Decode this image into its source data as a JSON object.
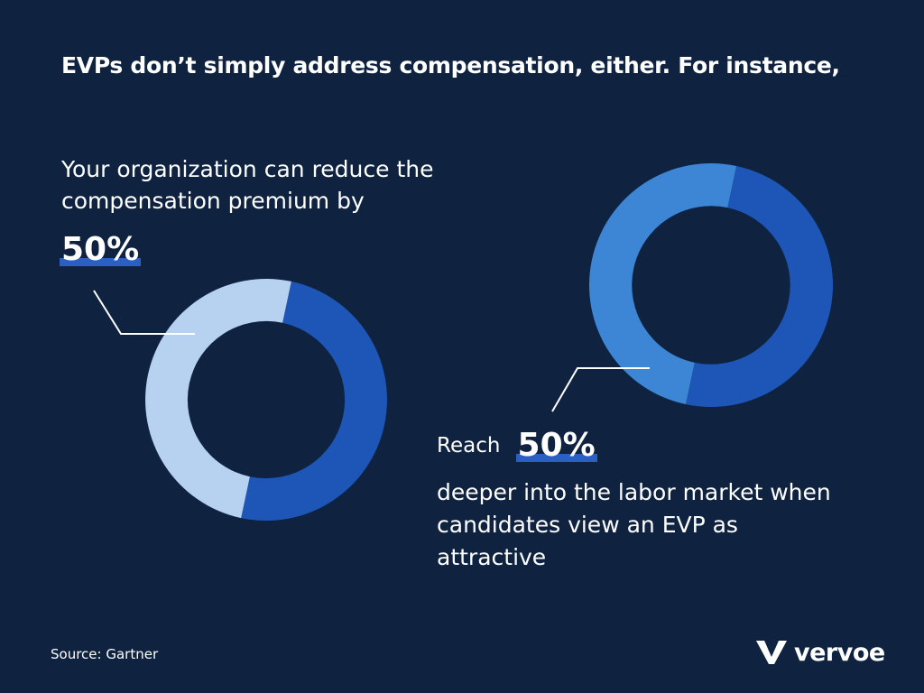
{
  "headline": "EVPs don’t simply address compensation, either. For instance,",
  "stat_left": {
    "text": "Your organization can reduce the compensation premium by",
    "value_label": "50%"
  },
  "stat_right": {
    "prefix": "Reach",
    "value_label": "50%",
    "text": "deeper into the labor market when candidates view an EVP as attractive"
  },
  "source": "Source: Gartner",
  "logo": {
    "text": "vervoe",
    "icon": "vervoe-v-logo-icon"
  },
  "colors": {
    "background": "#0f2340",
    "highlight": "#2a5fc4",
    "left_primary": "#1e56b8",
    "left_remainder": "#b6d2f0",
    "right_primary": "#1e56b8",
    "right_remainder": "#3d86d6"
  },
  "chart_data": [
    {
      "type": "pie",
      "donut": true,
      "labels": [
        "",
        ""
      ],
      "values": [
        50,
        50
      ],
      "colors": [
        "#1e56b8",
        "#b6d2f0"
      ],
      "start_angle_deg": 12
    },
    {
      "type": "pie",
      "donut": true,
      "labels": [
        "",
        ""
      ],
      "values": [
        50,
        50
      ],
      "colors": [
        "#1e56b8",
        "#3d86d6"
      ],
      "start_angle_deg": 12
    }
  ]
}
